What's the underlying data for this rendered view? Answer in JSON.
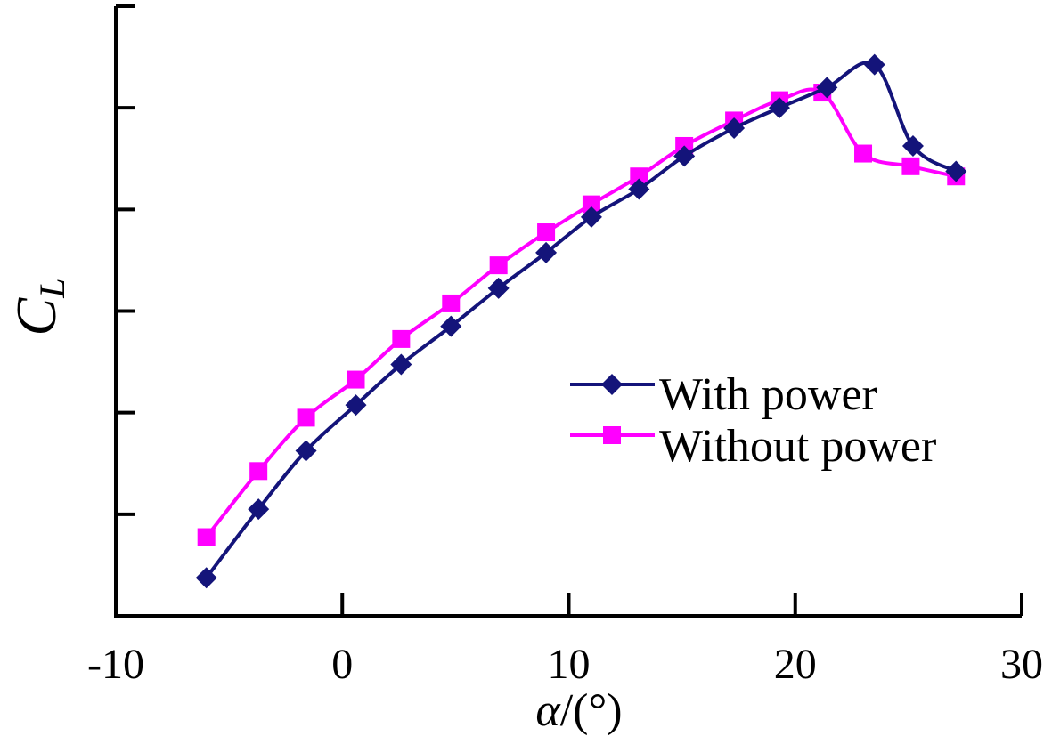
{
  "chart_data": {
    "type": "line",
    "title": "",
    "xlabel": "α/(°)",
    "xlabel_symbol": "α",
    "xlabel_unit": "/(°)",
    "ylabel": "C_L",
    "ylabel_main": "C",
    "ylabel_sub": "L",
    "xlim": [
      -10,
      30
    ],
    "x_ticks": [
      -10,
      0,
      10,
      20,
      30
    ],
    "x_tick_labels": [
      "-10",
      "0",
      "10",
      "20",
      "30"
    ],
    "ylim": [
      0,
      1.2
    ],
    "y_ticks": [
      0.2,
      0.4,
      0.6,
      0.8,
      1.0,
      1.2
    ],
    "y_tick_labels_visible": false,
    "grid": false,
    "legend_position": "center-right",
    "series": [
      {
        "name": "With power",
        "color": "#14147a",
        "marker": "diamond",
        "x": [
          -6,
          -3.7,
          -1.6,
          0.6,
          2.6,
          4.8,
          6.9,
          9.0,
          11.0,
          13.1,
          15.1,
          17.3,
          19.3,
          21.4,
          23.5,
          25.2,
          27.1
        ],
        "y": [
          0.075,
          0.21,
          0.325,
          0.415,
          0.495,
          0.57,
          0.645,
          0.715,
          0.785,
          0.84,
          0.905,
          0.96,
          1.0,
          1.04,
          1.085,
          0.925,
          0.875
        ]
      },
      {
        "name": "Without power",
        "color": "#ff00ff",
        "marker": "square",
        "x": [
          -6,
          -3.7,
          -1.6,
          0.6,
          2.6,
          4.8,
          6.9,
          9.0,
          11.0,
          13.1,
          15.1,
          17.3,
          19.3,
          21.2,
          23.0,
          25.1,
          27.1
        ],
        "y": [
          0.155,
          0.285,
          0.39,
          0.465,
          0.545,
          0.615,
          0.69,
          0.755,
          0.81,
          0.865,
          0.925,
          0.975,
          1.015,
          1.03,
          0.91,
          0.885,
          0.865
        ]
      }
    ]
  }
}
